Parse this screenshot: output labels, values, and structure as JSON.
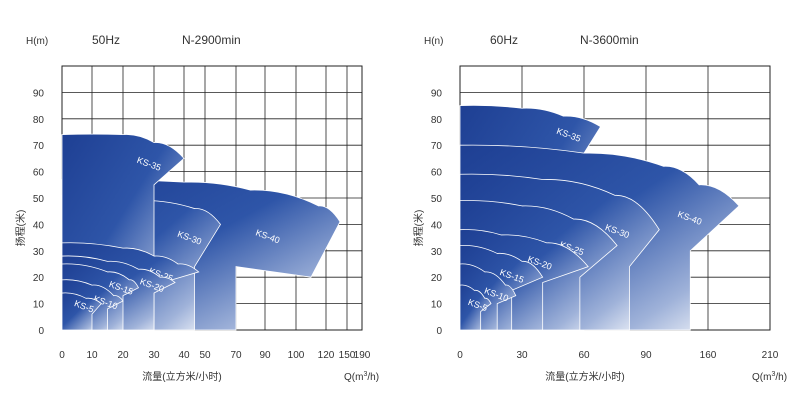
{
  "chart_data": [
    {
      "type": "area",
      "frequency": "50Hz",
      "speed": "N-2900min",
      "y_unit": "H(m)",
      "x_unit_base": "Q(m",
      "x_unit_sup": "3",
      "x_unit_tail": "/h)",
      "xlabel": "流量(立方米/小时)",
      "ylabel": "扬程(米)",
      "x_ticks": [
        "0",
        "10",
        "20",
        "30",
        "40",
        "50",
        "70",
        "90",
        "100",
        "120",
        "150",
        "190"
      ],
      "y_ticks": [
        "0",
        "10",
        "20",
        "30",
        "40",
        "50",
        "60",
        "70",
        "80",
        "90"
      ],
      "ylim": [
        0,
        100
      ],
      "grid": true,
      "series": [
        {
          "name": "KS-40",
          "top": [
            [
              0,
              57
            ],
            [
              40,
              56
            ],
            [
              80,
              53
            ],
            [
              115,
              47
            ],
            [
              140,
              41
            ]
          ],
          "bottom": [
            [
              70,
              24
            ],
            [
              110,
              20
            ],
            [
              140,
              41
            ]
          ]
        },
        {
          "name": "KS-30",
          "top": [
            [
              0,
              51
            ],
            [
              25,
              49
            ],
            [
              45,
              46
            ],
            [
              60,
              40
            ]
          ],
          "bottom": [
            [
              45,
              24
            ],
            [
              60,
              40
            ]
          ]
        },
        {
          "name": "KS-35",
          "top": [
            [
              0,
              74
            ],
            [
              20,
              74
            ],
            [
              30,
              71
            ],
            [
              40,
              65
            ]
          ],
          "bottom": [
            [
              30,
              55
            ],
            [
              40,
              65
            ]
          ]
        },
        {
          "name": "KS-25",
          "top": [
            [
              0,
              33
            ],
            [
              20,
              31
            ],
            [
              30,
              28
            ],
            [
              38,
              25
            ],
            [
              47,
              22
            ]
          ],
          "bottom": [
            [
              30,
              17
            ],
            [
              47,
              22
            ]
          ]
        },
        {
          "name": "KS-20",
          "top": [
            [
              0,
              28
            ],
            [
              15,
              26
            ],
            [
              25,
              23
            ],
            [
              32,
              20
            ],
            [
              37,
              18
            ]
          ],
          "bottom": [
            [
              30,
              14
            ],
            [
              37,
              18
            ]
          ]
        },
        {
          "name": "KS-15",
          "top": [
            [
              0,
              25
            ],
            [
              15,
              22
            ],
            [
              22,
              19
            ],
            [
              25,
              16
            ]
          ],
          "bottom": [
            [
              20,
              13
            ],
            [
              25,
              16
            ]
          ]
        },
        {
          "name": "KS-10",
          "top": [
            [
              0,
              19
            ],
            [
              10,
              17
            ],
            [
              17,
              13
            ],
            [
              20,
              11
            ]
          ],
          "bottom": [
            [
              15,
              8
            ],
            [
              20,
              11
            ]
          ]
        },
        {
          "name": "KS-5",
          "top": [
            [
              0,
              14
            ],
            [
              8,
              12
            ],
            [
              13,
              10
            ]
          ],
          "bottom": [
            [
              10,
              6
            ],
            [
              13,
              10
            ]
          ]
        }
      ]
    },
    {
      "type": "area",
      "frequency": "60Hz",
      "speed": "N-3600min",
      "y_unit": "H(n)",
      "x_unit_base": "Q(m",
      "x_unit_sup": "3",
      "x_unit_tail": "/h)",
      "xlabel": "流量(立方米/小时)",
      "ylabel": "扬程(米)",
      "x_ticks": [
        "0",
        "30",
        "60",
        "90",
        "160",
        "210"
      ],
      "y_ticks": [
        "0",
        "10",
        "20",
        "30",
        "40",
        "50",
        "60",
        "70",
        "80",
        "90"
      ],
      "ylim": [
        0,
        100
      ],
      "grid": true,
      "series": [
        {
          "name": "KS-35",
          "top": [
            [
              0,
              85
            ],
            [
              30,
              84
            ],
            [
              50,
              81
            ],
            [
              68,
              77
            ]
          ],
          "bottom": [
            [
              60,
              67
            ],
            [
              68,
              77
            ]
          ]
        },
        {
          "name": "KS-40",
          "top": [
            [
              0,
              70
            ],
            [
              60,
              67
            ],
            [
              110,
              62
            ],
            [
              150,
              55
            ],
            [
              185,
              47
            ]
          ],
          "bottom": [
            [
              140,
              30
            ],
            [
              185,
              47
            ]
          ]
        },
        {
          "name": "KS-30",
          "top": [
            [
              0,
              59
            ],
            [
              40,
              57
            ],
            [
              75,
              51
            ],
            [
              105,
              38
            ]
          ],
          "bottom": [
            [
              82,
              24
            ],
            [
              105,
              38
            ]
          ]
        },
        {
          "name": "KS-25",
          "top": [
            [
              0,
              49
            ],
            [
              30,
              47
            ],
            [
              55,
              42
            ],
            [
              76,
              32
            ]
          ],
          "bottom": [
            [
              58,
              20
            ],
            [
              76,
              32
            ]
          ]
        },
        {
          "name": "KS-20",
          "top": [
            [
              0,
              38
            ],
            [
              20,
              36
            ],
            [
              42,
              33
            ],
            [
              62,
              24
            ]
          ],
          "bottom": [
            [
              40,
              18
            ],
            [
              62,
              24
            ]
          ]
        },
        {
          "name": "KS-15",
          "top": [
            [
              0,
              32
            ],
            [
              18,
              29
            ],
            [
              30,
              26
            ],
            [
              40,
              20
            ]
          ],
          "bottom": [
            [
              25,
              15
            ],
            [
              40,
              20
            ]
          ]
        },
        {
          "name": "KS-10",
          "top": [
            [
              0,
              25
            ],
            [
              12,
              22
            ],
            [
              22,
              17
            ],
            [
              27,
              13
            ]
          ],
          "bottom": [
            [
              18,
              10
            ],
            [
              27,
              13
            ]
          ]
        },
        {
          "name": "KS-5",
          "top": [
            [
              0,
              17
            ],
            [
              7,
              15
            ],
            [
              12,
              12
            ],
            [
              15,
              10
            ]
          ],
          "bottom": [
            [
              10,
              7
            ],
            [
              15,
              10
            ]
          ]
        }
      ]
    }
  ]
}
